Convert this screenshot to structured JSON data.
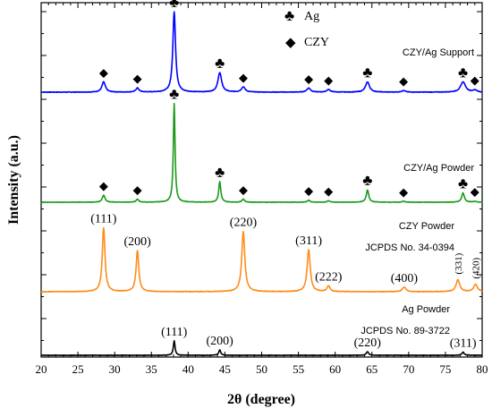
{
  "chart_data": {
    "type": "line",
    "xlabel": "2θ (degree)",
    "ylabel": "Intensity (a.u.)",
    "xlim": [
      20,
      80
    ],
    "x_ticks": [
      "20",
      "25",
      "30",
      "35",
      "40",
      "45",
      "50",
      "55",
      "60",
      "65",
      "70",
      "75",
      "80"
    ],
    "legend": [
      {
        "symbol": "♣",
        "label": "Ag"
      },
      {
        "symbol": "◆",
        "label": "CZY"
      }
    ],
    "series": [
      {
        "name": "CZY/Ag Support",
        "color": "#0000ff",
        "baseline": 8,
        "noise": 0.25,
        "peaks": [
          {
            "x": 28.5,
            "h": 10,
            "w": 0.28
          },
          {
            "x": 33.1,
            "h": 4,
            "w": 0.25
          },
          {
            "x": 38.1,
            "h": 78,
            "w": 0.22
          },
          {
            "x": 44.3,
            "h": 19,
            "w": 0.3
          },
          {
            "x": 47.5,
            "h": 5,
            "w": 0.3
          },
          {
            "x": 56.4,
            "h": 4,
            "w": 0.3
          },
          {
            "x": 59.1,
            "h": 2.5,
            "w": 0.3
          },
          {
            "x": 64.4,
            "h": 10,
            "w": 0.32
          },
          {
            "x": 69.3,
            "h": 1.5,
            "w": 0.3
          },
          {
            "x": 77.4,
            "h": 10,
            "w": 0.4
          },
          {
            "x": 79.0,
            "h": 2,
            "w": 0.3
          }
        ],
        "markers": [
          {
            "x": 28.5,
            "s": "◆"
          },
          {
            "x": 33.1,
            "s": "◆"
          },
          {
            "x": 38.1,
            "s": "♣"
          },
          {
            "x": 44.3,
            "s": "♣"
          },
          {
            "x": 47.5,
            "s": "◆"
          },
          {
            "x": 56.4,
            "s": "◆"
          },
          {
            "x": 59.1,
            "s": "◆"
          },
          {
            "x": 64.4,
            "s": "♣"
          },
          {
            "x": 69.3,
            "s": "◆"
          },
          {
            "x": 77.4,
            "s": "♣"
          },
          {
            "x": 79.0,
            "s": "◆"
          }
        ],
        "label_lines": [
          "CZY/Ag Support"
        ]
      },
      {
        "name": "CZY/Ag Powder",
        "color": "#1a9a1a",
        "baseline": 5,
        "noise": 0.2,
        "peaks": [
          {
            "x": 28.5,
            "h": 7,
            "w": 0.22
          },
          {
            "x": 33.1,
            "h": 3,
            "w": 0.2
          },
          {
            "x": 38.1,
            "h": 96,
            "w": 0.14
          },
          {
            "x": 44.3,
            "h": 20,
            "w": 0.17
          },
          {
            "x": 47.5,
            "h": 3,
            "w": 0.2
          },
          {
            "x": 56.4,
            "h": 2,
            "w": 0.2
          },
          {
            "x": 59.1,
            "h": 1.5,
            "w": 0.2
          },
          {
            "x": 64.4,
            "h": 12,
            "w": 0.2
          },
          {
            "x": 69.3,
            "h": 1,
            "w": 0.2
          },
          {
            "x": 77.4,
            "h": 9,
            "w": 0.22
          },
          {
            "x": 79.0,
            "h": 1,
            "w": 0.2
          }
        ],
        "markers": [
          {
            "x": 28.5,
            "s": "◆"
          },
          {
            "x": 33.1,
            "s": "◆"
          },
          {
            "x": 38.1,
            "s": "♣"
          },
          {
            "x": 44.3,
            "s": "♣"
          },
          {
            "x": 47.5,
            "s": "◆"
          },
          {
            "x": 56.4,
            "s": "◆"
          },
          {
            "x": 59.1,
            "s": "◆"
          },
          {
            "x": 64.4,
            "s": "♣"
          },
          {
            "x": 69.3,
            "s": "◆"
          },
          {
            "x": 77.4,
            "s": "♣"
          },
          {
            "x": 79.0,
            "s": "◆"
          }
        ],
        "label_lines": [
          "CZY/Ag Powder"
        ]
      },
      {
        "name": "CZY Powder",
        "color": "#ff8c1a",
        "baseline": 6,
        "noise": 0.3,
        "peaks": [
          {
            "x": 28.5,
            "h": 70,
            "w": 0.22
          },
          {
            "x": 33.1,
            "h": 45,
            "w": 0.22
          },
          {
            "x": 47.5,
            "h": 66,
            "w": 0.25
          },
          {
            "x": 56.4,
            "h": 46,
            "w": 0.25
          },
          {
            "x": 59.1,
            "h": 6,
            "w": 0.25
          },
          {
            "x": 69.4,
            "h": 5,
            "w": 0.28
          },
          {
            "x": 76.7,
            "h": 13,
            "w": 0.3
          },
          {
            "x": 79.1,
            "h": 8,
            "w": 0.3
          }
        ],
        "hkl": [
          {
            "x": 28.5,
            "t": "(111)"
          },
          {
            "x": 33.1,
            "t": "(200)"
          },
          {
            "x": 47.5,
            "t": "(220)"
          },
          {
            "x": 56.4,
            "t": "(311)"
          },
          {
            "x": 59.1,
            "t": "(222)"
          },
          {
            "x": 69.4,
            "t": "(400)"
          },
          {
            "x": 76.7,
            "t": "(331)",
            "rotate": true
          },
          {
            "x": 79.1,
            "t": "(420)",
            "rotate": true
          }
        ],
        "label_lines": [
          "CZY Powder",
          "JCPDS No. 34-0394"
        ]
      },
      {
        "name": "Ag Powder",
        "color": "#000000",
        "baseline": 4,
        "noise": 0.2,
        "peaks": [
          {
            "x": 38.1,
            "h": 16,
            "w": 0.14
          },
          {
            "x": 44.3,
            "h": 6,
            "w": 0.16
          },
          {
            "x": 64.4,
            "h": 4,
            "w": 0.18
          },
          {
            "x": 77.4,
            "h": 3.5,
            "w": 0.18
          }
        ],
        "hkl": [
          {
            "x": 38.1,
            "t": "(111)"
          },
          {
            "x": 44.3,
            "t": "(200)"
          },
          {
            "x": 64.4,
            "t": "(220)"
          },
          {
            "x": 77.4,
            "t": "(311)"
          }
        ],
        "label_lines": [
          "Ag Powder",
          "JCPDS No. 89-3722"
        ]
      }
    ]
  }
}
